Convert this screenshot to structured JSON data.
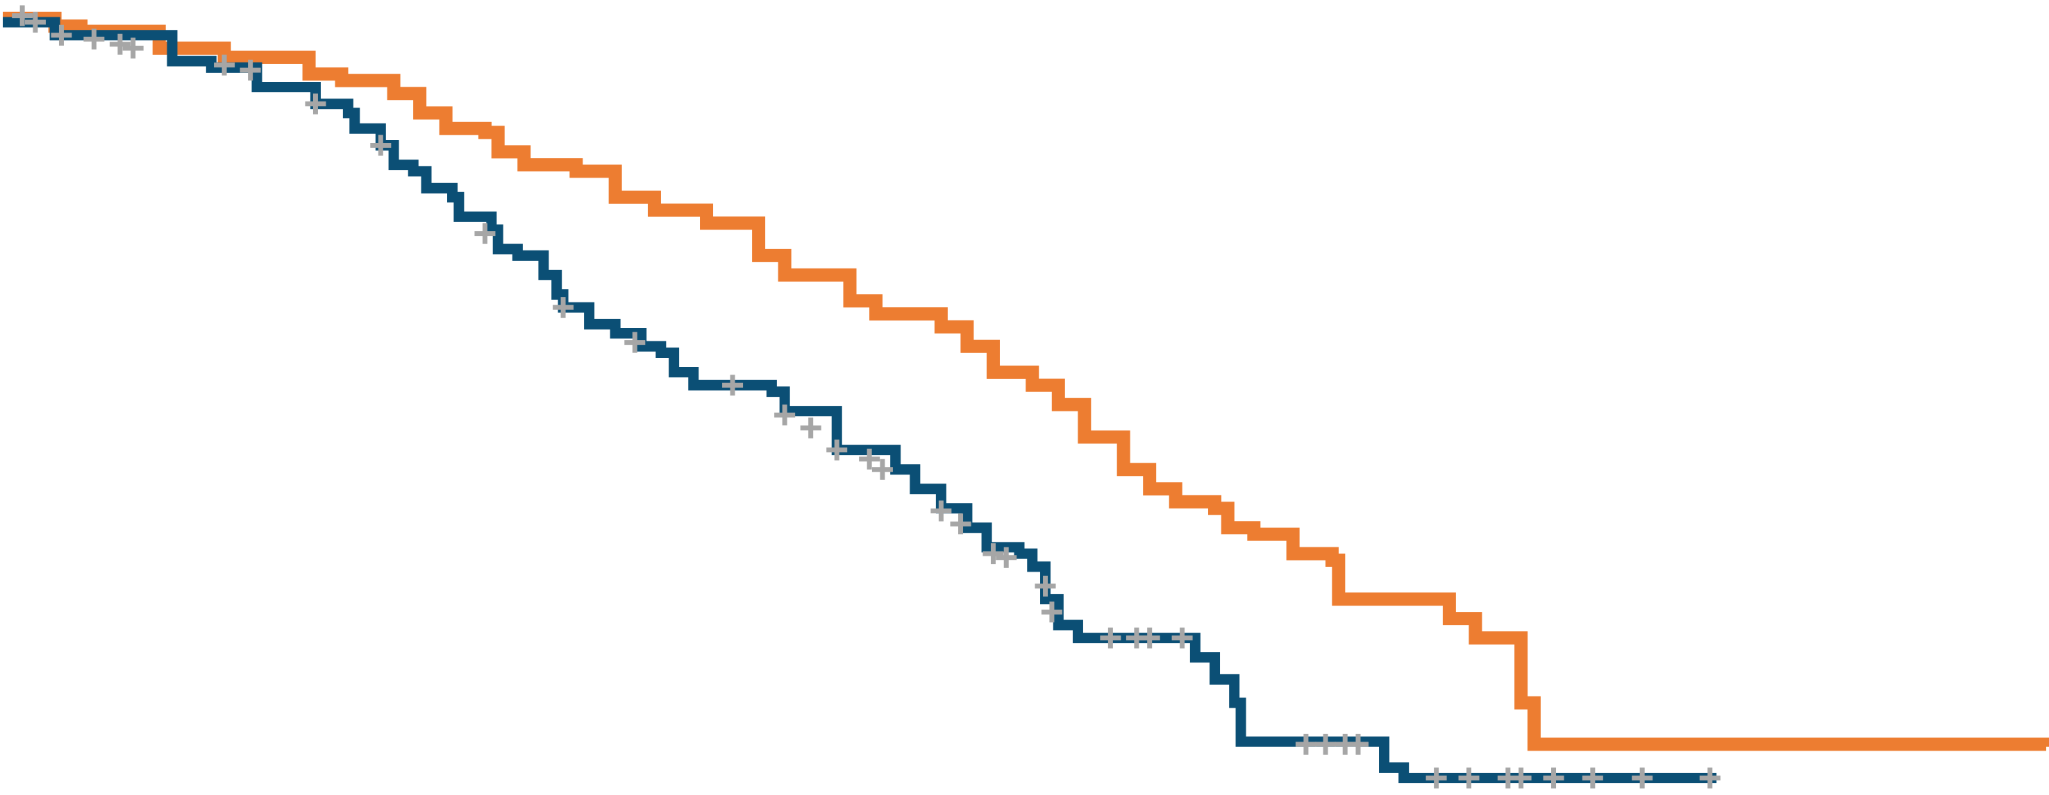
{
  "chart_data": {
    "type": "step",
    "xlim": [
      0,
      1568
    ],
    "ylim": [
      0,
      609
    ],
    "series": [
      {
        "color": "#ed7d31",
        "x": [
          0,
          40,
          60,
          120,
          170,
          225,
          235,
          260,
          300,
          320,
          340,
          370,
          380,
          400,
          440,
          470,
          500,
          540,
          580,
          600,
          630,
          650,
          670,
          700,
          720,
          740,
          760,
          790,
          810,
          830,
          860,
          880,
          900,
          930,
          940,
          960,
          985,
          990,
          1020,
          1025,
          1100,
          1110,
          1130,
          1160,
          1165,
          1175,
          1568
        ],
        "values": [
          597,
          591,
          587,
          574,
          567,
          567,
          554,
          549,
          539,
          524,
          512,
          509,
          494,
          484,
          479,
          459,
          449,
          439,
          414,
          399,
          399,
          379,
          369,
          369,
          359,
          344,
          324,
          314,
          299,
          274,
          249,
          234,
          224,
          219,
          204,
          199,
          199,
          184,
          179,
          149,
          149,
          134,
          119,
          119,
          69,
          37,
          35
        ]
      },
      {
        "color": "#0b4f75",
        "x": [
          0,
          40,
          130,
          160,
          195,
          235,
          240,
          265,
          270,
          290,
          300,
          315,
          325,
          345,
          350,
          375,
          380,
          395,
          415,
          425,
          430,
          450,
          470,
          490,
          505,
          515,
          530,
          555,
          590,
          600,
          640,
          685,
          700,
          720,
          740,
          755,
          780,
          790,
          800,
          810,
          825,
          915,
          915,
          930,
          945,
          950,
          1060,
          1060,
          1075,
          1315
        ],
        "values": [
          594,
          584,
          564,
          559,
          544,
          544,
          531,
          524,
          512,
          499,
          484,
          479,
          466,
          459,
          444,
          434,
          419,
          414,
          399,
          384,
          374,
          361,
          354,
          344,
          339,
          324,
          314,
          314,
          309,
          294,
          264,
          249,
          234,
          219,
          204,
          189,
          184,
          174,
          149,
          129,
          119,
          119,
          104,
          87,
          69,
          39,
          37,
          19,
          11,
          11
        ]
      }
    ],
    "censored": {
      "color": "#a6a6a6",
      "x": [
        15,
        25,
        45,
        70,
        90,
        100,
        170,
        190,
        240,
        290,
        370,
        430,
        485,
        560,
        600,
        620,
        640,
        665,
        675,
        720,
        735,
        760,
        770,
        800,
        805,
        850,
        870,
        880,
        905,
        1000,
        1015,
        1030,
        1040,
        1100,
        1125,
        1155,
        1165,
        1190,
        1220,
        1258,
        1310
      ],
      "y": [
        599,
        594,
        584,
        581,
        577,
        574,
        561,
        557,
        531,
        499,
        431,
        374,
        347,
        314,
        291,
        281,
        264,
        257,
        249,
        217,
        207,
        184,
        181,
        159,
        139,
        119,
        119,
        119,
        119,
        37,
        37,
        37,
        37,
        11,
        11,
        11,
        11,
        11,
        11,
        11,
        11
      ]
    }
  }
}
